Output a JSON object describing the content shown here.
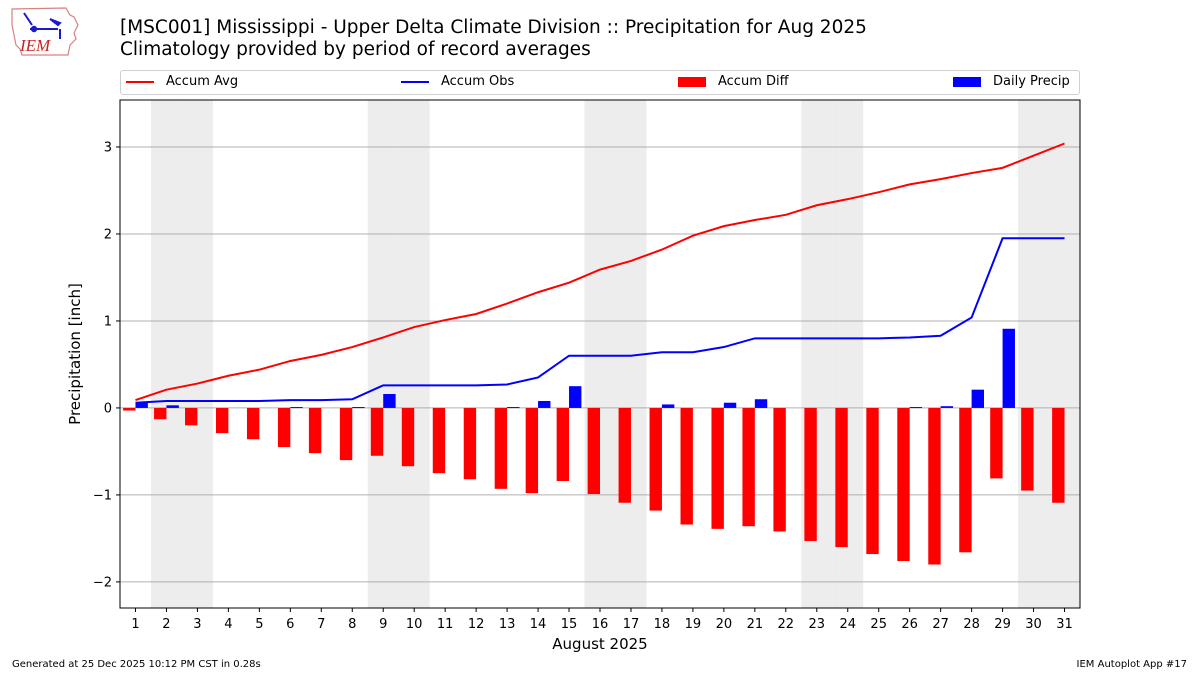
{
  "header": {
    "title_line1": "[MSC001] Mississippi - Upper Delta Climate Division :: Precipitation for Aug 2025",
    "title_line2": "Climatology provided by period of record averages",
    "logo_text": "IEM"
  },
  "legend": [
    {
      "label": "Accum Avg",
      "kind": "line",
      "color": "#ff0000"
    },
    {
      "label": "Accum Obs",
      "kind": "line",
      "color": "#0000ff"
    },
    {
      "label": "Accum Diff",
      "kind": "bar",
      "color": "#ff0000"
    },
    {
      "label": "Daily Precip",
      "kind": "bar",
      "color": "#0000ff"
    }
  ],
  "footer": {
    "generated": "Generated at 25 Dec 2025 10:12 PM CST in 0.28s",
    "app": "IEM Autoplot App #17"
  },
  "chart_data": {
    "type": "bar",
    "title": "[MSC001] Mississippi - Upper Delta Climate Division :: Precipitation for Aug 2025",
    "subtitle": "Climatology provided by period of record averages",
    "xlabel": "August 2025",
    "ylabel": "Precipitation [inch]",
    "x": [
      1,
      2,
      3,
      4,
      5,
      6,
      7,
      8,
      9,
      10,
      11,
      12,
      13,
      14,
      15,
      16,
      17,
      18,
      19,
      20,
      21,
      22,
      23,
      24,
      25,
      26,
      27,
      28,
      29,
      30,
      31
    ],
    "xlim": [
      0.5,
      31.5
    ],
    "ylim": [
      -2.3,
      3.54
    ],
    "yticks": [
      -2,
      -1,
      0,
      1,
      2,
      3
    ],
    "ytick_labels": [
      "−2",
      "−1",
      "0",
      "1",
      "2",
      "3"
    ],
    "grid": true,
    "legend_position": "top",
    "weekend_shaded_days": [
      2,
      3,
      9,
      10,
      16,
      17,
      23,
      24,
      30,
      31
    ],
    "series": [
      {
        "name": "Accum Avg",
        "type": "line",
        "color": "#ff0000",
        "values": [
          0.09,
          0.21,
          0.28,
          0.37,
          0.44,
          0.54,
          0.61,
          0.7,
          0.81,
          0.93,
          1.01,
          1.08,
          1.2,
          1.33,
          1.44,
          1.59,
          1.69,
          1.82,
          1.98,
          2.09,
          2.16,
          2.22,
          2.33,
          2.4,
          2.48,
          2.57,
          2.63,
          2.7,
          2.76,
          2.9,
          3.04
        ]
      },
      {
        "name": "Accum Obs",
        "type": "line",
        "color": "#0000ff",
        "values": [
          0.06,
          0.08,
          0.08,
          0.08,
          0.08,
          0.09,
          0.09,
          0.1,
          0.26,
          0.26,
          0.26,
          0.26,
          0.27,
          0.35,
          0.6,
          0.6,
          0.6,
          0.64,
          0.64,
          0.7,
          0.8,
          0.8,
          0.8,
          0.8,
          0.8,
          0.81,
          0.83,
          1.04,
          1.95,
          1.95,
          1.95
        ]
      },
      {
        "name": "Accum Diff",
        "type": "bar",
        "color": "#ff0000",
        "values": [
          -0.03,
          -0.13,
          -0.2,
          -0.29,
          -0.36,
          -0.45,
          -0.52,
          -0.6,
          -0.55,
          -0.67,
          -0.75,
          -0.82,
          -0.93,
          -0.98,
          -0.84,
          -0.99,
          -1.09,
          -1.18,
          -1.34,
          -1.39,
          -1.36,
          -1.42,
          -1.53,
          -1.6,
          -1.68,
          -1.76,
          -1.8,
          -1.66,
          -0.81,
          -0.95,
          -1.09
        ]
      },
      {
        "name": "Daily Precip",
        "type": "bar",
        "color": "#0000ff",
        "values": [
          0.06,
          0.03,
          0,
          0,
          0,
          0.01,
          0,
          0.01,
          0.16,
          0,
          0,
          0,
          0.01,
          0.08,
          0.25,
          0,
          0,
          0.04,
          0,
          0.06,
          0.1,
          0,
          0,
          0,
          0,
          0.01,
          0.02,
          0.21,
          0.91,
          0,
          0
        ]
      }
    ]
  }
}
